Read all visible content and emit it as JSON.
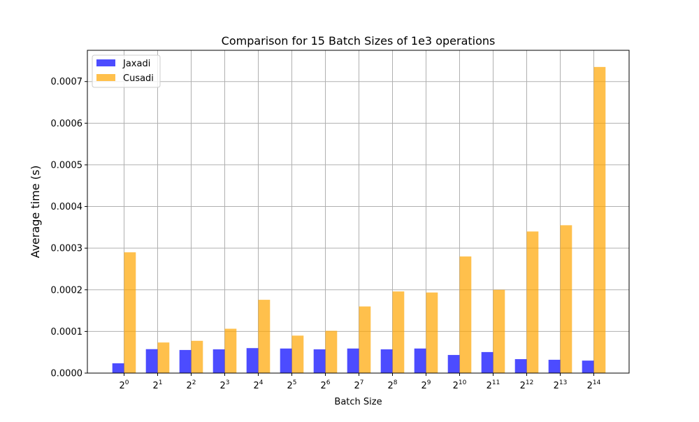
{
  "chart_data": {
    "type": "bar",
    "title": "Comparison for 15 Batch Sizes of 1e3 operations",
    "xlabel": "Batch Size",
    "ylabel": "Average time (s)",
    "x_tick_base": "2",
    "categories": [
      "0",
      "1",
      "2",
      "3",
      "4",
      "5",
      "6",
      "7",
      "8",
      "9",
      "10",
      "11",
      "12",
      "13",
      "14"
    ],
    "ylim": [
      0,
      0.000775
    ],
    "yticks": [
      "0.0000",
      "0.0001",
      "0.0002",
      "0.0003",
      "0.0004",
      "0.0005",
      "0.0006",
      "0.0007"
    ],
    "ytick_values": [
      0,
      0.0001,
      0.0002,
      0.0003,
      0.0004,
      0.0005,
      0.0006,
      0.0007
    ],
    "grid": true,
    "legend_position": "top-left",
    "series": [
      {
        "name": "Jaxadi",
        "color": "#0000ff",
        "values": [
          2.35e-05,
          5.75e-05,
          5.55e-05,
          5.7e-05,
          6e-05,
          5.9e-05,
          5.7e-05,
          5.9e-05,
          5.7e-05,
          5.9e-05,
          4.35e-05,
          5.05e-05,
          3.35e-05,
          3.2e-05,
          3e-05
        ]
      },
      {
        "name": "Cusadi",
        "color": "#ffa500",
        "values": [
          0.00029,
          7.35e-05,
          7.75e-05,
          0.0001065,
          0.000176,
          9e-05,
          0.0001015,
          0.00016,
          0.000196,
          0.0001935,
          0.00028,
          0.0002,
          0.00034,
          0.000355,
          0.000735
        ]
      }
    ]
  }
}
